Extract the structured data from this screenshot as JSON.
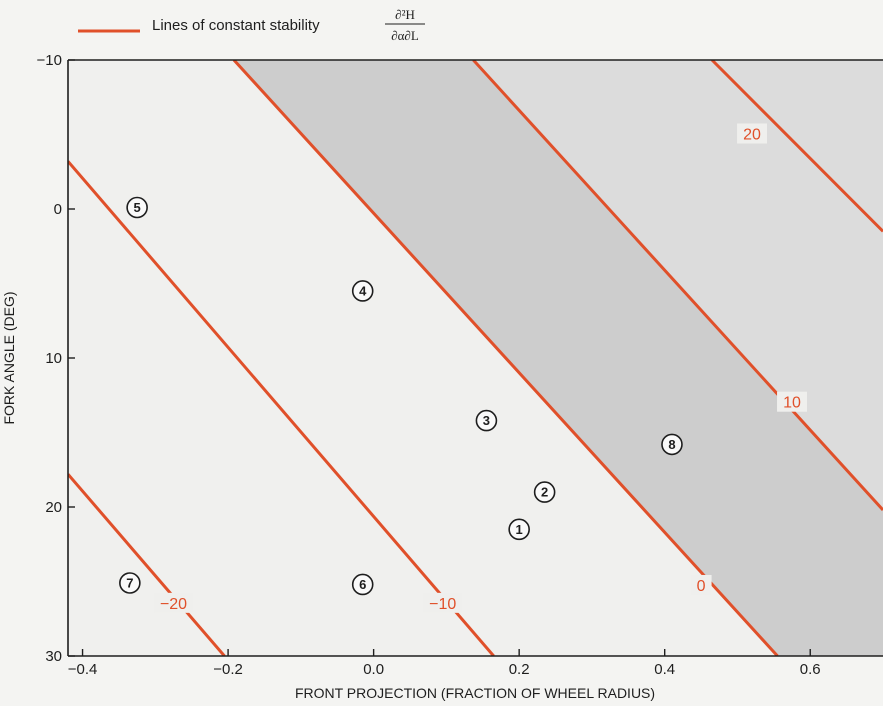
{
  "legend": {
    "label": "Lines of constant stability",
    "formula_numerator": "∂²H",
    "formula_denominator": "∂α∂L"
  },
  "chart_data": {
    "type": "line",
    "xlabel": "FRONT PROJECTION (FRACTION OF WHEEL RADIUS)",
    "ylabel": "FORK ANGLE (DEG)",
    "xlim": [
      -0.42,
      0.7
    ],
    "ylim": [
      -10,
      30
    ],
    "y_inverted": true,
    "x_ticks": [
      {
        "value": -0.4,
        "label": "−0.4"
      },
      {
        "value": -0.2,
        "label": "−0.2"
      },
      {
        "value": 0.0,
        "label": "0.0"
      },
      {
        "value": 0.2,
        "label": "0.2"
      },
      {
        "value": 0.4,
        "label": "0.4"
      },
      {
        "value": 0.6,
        "label": "0.6"
      }
    ],
    "y_ticks": [
      {
        "value": -10,
        "label": "−10"
      },
      {
        "value": 0,
        "label": "0"
      },
      {
        "value": 10,
        "label": "10"
      },
      {
        "value": 20,
        "label": "20"
      },
      {
        "value": 30,
        "label": "30"
      }
    ],
    "contours": [
      {
        "label": "−20",
        "points": [
          [
            -0.42,
            17.8
          ],
          [
            -0.205,
            30
          ]
        ],
        "label_at": [
          -0.275,
          26.5
        ]
      },
      {
        "label": "−10",
        "points": [
          [
            -0.42,
            -3.2
          ],
          [
            0.165,
            30
          ]
        ],
        "label_at": [
          0.095,
          26.5
        ]
      },
      {
        "label": "0",
        "points": [
          [
            -0.192,
            -10
          ],
          [
            0.555,
            30
          ]
        ],
        "label_at": [
          0.45,
          25.3
        ]
      },
      {
        "label": "10",
        "points": [
          [
            0.137,
            -10
          ],
          [
            0.7,
            20.2
          ]
        ],
        "label_at": [
          0.575,
          13
        ]
      },
      {
        "label": "20",
        "points": [
          [
            0.465,
            -10
          ],
          [
            0.7,
            1.5
          ]
        ],
        "label_at": [
          0.52,
          -5
        ]
      }
    ],
    "shaded_regions": [
      {
        "between": [
          "0",
          "10"
        ],
        "color": "#cdcdcd"
      },
      {
        "above": "10",
        "color": "#dcdcdc"
      }
    ],
    "points": [
      {
        "label": "1",
        "x": 0.2,
        "y": 21.5
      },
      {
        "label": "2",
        "x": 0.235,
        "y": 19
      },
      {
        "label": "3",
        "x": 0.155,
        "y": 14.2
      },
      {
        "label": "4",
        "x": -0.015,
        "y": 5.5
      },
      {
        "label": "5",
        "x": -0.325,
        "y": -0.1
      },
      {
        "label": "6",
        "x": -0.015,
        "y": 25.2
      },
      {
        "label": "7",
        "x": -0.335,
        "y": 25.1
      },
      {
        "label": "8",
        "x": 0.41,
        "y": 15.8
      }
    ],
    "line_color": "#e0502a",
    "grid": false,
    "legend_position": "top-left"
  }
}
